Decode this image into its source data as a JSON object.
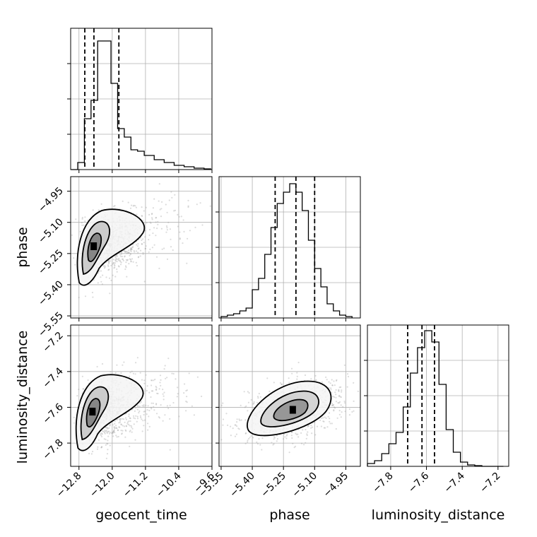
{
  "figure": {
    "type": "corner",
    "params": [
      "geocent_time",
      "phase",
      "luminosity_distance"
    ],
    "colors": {
      "line": "#000000",
      "grid": "#b0b0b0",
      "scatter": "#9a9a9a",
      "frame": "#000000"
    }
  },
  "chart_data": [
    {
      "type": "bar",
      "subtype": "histogram",
      "param": "geocent_time",
      "xlim": [
        -13.0,
        -9.6
      ],
      "ylim": [
        0,
        1.0
      ],
      "bin_edges": [
        -12.99,
        -12.83,
        -12.67,
        -12.51,
        -12.35,
        -12.19,
        -12.03,
        -11.87,
        -11.71,
        -11.55,
        -11.39,
        -11.23,
        -10.99,
        -10.75,
        -10.51,
        -10.27,
        -10.03,
        -9.79,
        -9.63
      ],
      "values": [
        0.0,
        0.05,
        0.36,
        0.49,
        0.91,
        0.91,
        0.61,
        0.29,
        0.23,
        0.14,
        0.13,
        0.1,
        0.07,
        0.05,
        0.03,
        0.02,
        0.01,
        0.005
      ],
      "quantile_lines": [
        -12.66,
        -12.44,
        -11.84
      ],
      "xticks": [
        "−12.8",
        "−12.0",
        "−11.2",
        "−10.4",
        "−9.6"
      ]
    },
    {
      "type": "bar",
      "subtype": "histogram",
      "param": "phase",
      "xlim": [
        -5.56,
        -4.88
      ],
      "ylim": [
        0,
        1.0
      ],
      "bin_edges": [
        -5.55,
        -5.52,
        -5.49,
        -5.46,
        -5.43,
        -5.4,
        -5.37,
        -5.34,
        -5.31,
        -5.28,
        -5.25,
        -5.22,
        -5.19,
        -5.16,
        -5.13,
        -5.1,
        -5.07,
        -5.04,
        -5.01,
        -4.98,
        -4.95,
        -4.92
      ],
      "values": [
        0.01,
        0.02,
        0.03,
        0.05,
        0.07,
        0.2,
        0.28,
        0.45,
        0.64,
        0.81,
        0.89,
        0.95,
        0.89,
        0.76,
        0.55,
        0.35,
        0.22,
        0.1,
        0.05,
        0.02,
        0.01
      ],
      "quantile_lines": [
        -5.29,
        -5.19,
        -5.1
      ],
      "xticks": [
        "−5.55",
        "−5.40",
        "−5.25",
        "−5.10",
        "−4.95"
      ]
    },
    {
      "type": "bar",
      "subtype": "histogram",
      "param": "luminosity_distance",
      "xlim": [
        -7.93,
        -7.14
      ],
      "ylim": [
        0,
        1.0
      ],
      "bin_edges": [
        -7.93,
        -7.89,
        -7.85,
        -7.81,
        -7.77,
        -7.73,
        -7.69,
        -7.65,
        -7.61,
        -7.57,
        -7.53,
        -7.49,
        -7.45,
        -7.41,
        -7.37,
        -7.33,
        -7.29,
        -7.25,
        -7.21,
        -7.17
      ],
      "values": [
        0.02,
        0.04,
        0.09,
        0.16,
        0.24,
        0.42,
        0.66,
        0.84,
        0.96,
        0.88,
        0.58,
        0.26,
        0.1,
        0.03,
        0.01,
        0.005,
        0.0,
        0.0,
        0.0
      ],
      "quantile_lines": [
        -7.705,
        -7.625,
        -7.555
      ],
      "xticks": [
        "−7.8",
        "−7.6",
        "−7.4",
        "−7.2"
      ]
    },
    {
      "type": "scatter",
      "subtype": "2d-density",
      "x_param": "geocent_time",
      "y_param": "phase",
      "xlim": [
        -13.0,
        -9.6
      ],
      "ylim": [
        -5.56,
        -4.88
      ],
      "x_center": -12.42,
      "y_center": -5.22,
      "yticks": [
        "−5.55",
        "−5.40",
        "−5.25",
        "−5.10",
        "−4.95"
      ]
    },
    {
      "type": "scatter",
      "subtype": "2d-density",
      "x_param": "geocent_time",
      "y_param": "luminosity_distance",
      "xlim": [
        -13.0,
        -9.6
      ],
      "ylim": [
        -7.93,
        -7.14
      ],
      "x_center": -12.45,
      "y_center": -7.63,
      "yticks": [
        "−7.8",
        "−7.6",
        "−7.4",
        "−7.2"
      ]
    },
    {
      "type": "scatter",
      "subtype": "2d-density",
      "x_param": "phase",
      "y_param": "luminosity_distance",
      "xlim": [
        -5.56,
        -4.88
      ],
      "ylim": [
        -7.93,
        -7.14
      ],
      "x_center": -5.2,
      "y_center": -7.62
    }
  ],
  "labels": {
    "x": [
      "geocent_time",
      "phase",
      "luminosity_distance"
    ],
    "y": [
      "phase",
      "luminosity_distance"
    ]
  }
}
